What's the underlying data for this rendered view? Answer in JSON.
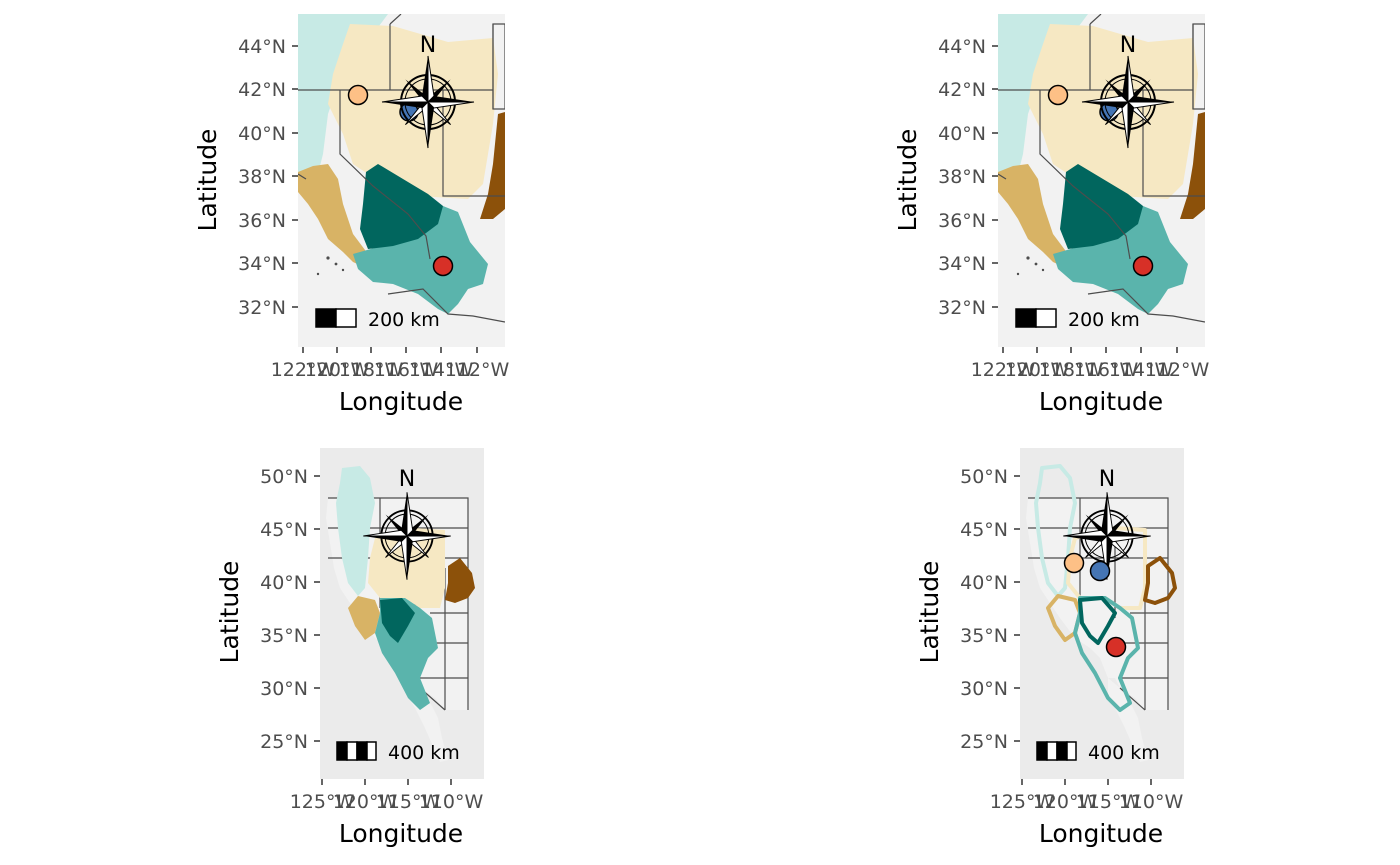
{
  "colors": {
    "panel_bg": "#ebebeb",
    "land": "#f2f2f2",
    "state_border": "#4d4d4d",
    "range_light_teal": "#c7eae5",
    "range_cream": "#f6e8c3",
    "range_tan": "#d8b365",
    "range_dark_teal": "#01665e",
    "range_mid_teal": "#5ab4ac",
    "range_brown": "#8c510a",
    "point_orange": "#fdc086",
    "point_blue": "#4575b4",
    "point_red": "#d73027"
  },
  "panels": [
    {
      "id": "top-left",
      "x_label": "Longitude",
      "y_label": "Latitude",
      "x_ticks": [
        "122°W",
        "120°W",
        "118°W",
        "116°W",
        "114°W",
        "112°W"
      ],
      "y_ticks": [
        "44°N",
        "42°N",
        "40°N",
        "38°N",
        "36°N",
        "34°N",
        "32°N"
      ],
      "north_label": "N",
      "scale_label": "200 km",
      "range_style": "filled"
    },
    {
      "id": "top-right",
      "x_label": "Longitude",
      "y_label": "Latitude",
      "x_ticks": [
        "122°W",
        "120°W",
        "118°W",
        "116°W",
        "114°W",
        "112°W"
      ],
      "y_ticks": [
        "44°N",
        "42°N",
        "40°N",
        "38°N",
        "36°N",
        "34°N",
        "32°N"
      ],
      "north_label": "N",
      "scale_label": "200 km",
      "range_style": "filled"
    },
    {
      "id": "bottom-left",
      "x_label": "Longitude",
      "y_label": "Latitude",
      "x_ticks": [
        "125°W",
        "120°W",
        "115°W",
        "110°W"
      ],
      "y_ticks": [
        "50°N",
        "45°N",
        "40°N",
        "35°N",
        "30°N",
        "25°N"
      ],
      "north_label": "N",
      "scale_label": "400 km",
      "range_style": "filled"
    },
    {
      "id": "bottom-right",
      "x_label": "Longitude",
      "y_label": "Latitude",
      "x_ticks": [
        "125°W",
        "120°W",
        "115°W",
        "110°W"
      ],
      "y_ticks": [
        "50°N",
        "45°N",
        "40°N",
        "35°N",
        "30°N",
        "25°N"
      ],
      "north_label": "N",
      "scale_label": "400 km",
      "range_style": "outline"
    }
  ]
}
